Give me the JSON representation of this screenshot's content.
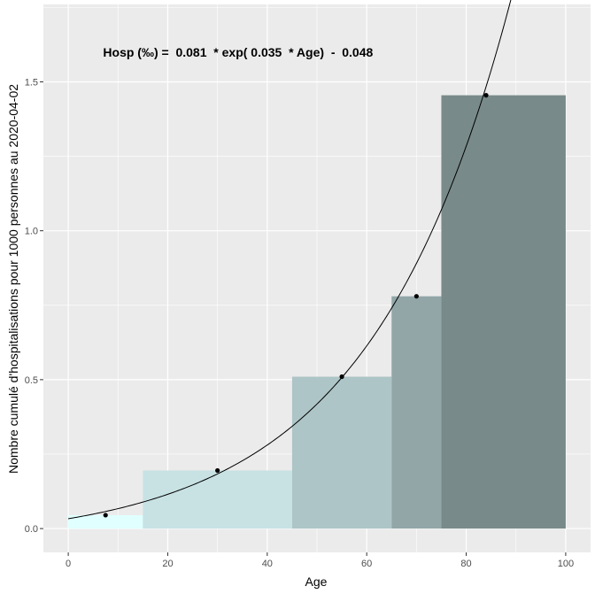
{
  "chart_data": {
    "type": "bar",
    "title": "",
    "xlabel": "Age",
    "ylabel": "Nombre cumulé d'hospitalisations pour 1000 personnes au 2020-04-02",
    "xlim": [
      -5,
      105
    ],
    "ylim": [
      -0.08,
      1.76
    ],
    "x_ticks": [
      0,
      20,
      40,
      60,
      80,
      100
    ],
    "x_tick_labels": [
      "0",
      "20",
      "40",
      "60",
      "80",
      "100"
    ],
    "y_ticks": [
      0.0,
      0.5,
      1.0,
      1.5
    ],
    "y_tick_labels": [
      "0.0",
      "0.5",
      "1.0",
      "1.5"
    ],
    "grid": true,
    "bars": [
      {
        "x_start": 0,
        "x_end": 15,
        "value": 0.045,
        "color": "#e0ffff"
      },
      {
        "x_start": 15,
        "x_end": 45,
        "value": 0.195,
        "color": "#c8e2e4"
      },
      {
        "x_start": 45,
        "x_end": 65,
        "value": 0.51,
        "color": "#adc5c6"
      },
      {
        "x_start": 65,
        "x_end": 75,
        "value": 0.78,
        "color": "#92a6a8"
      },
      {
        "x_start": 75,
        "x_end": 100,
        "value": 1.455,
        "color": "#798a8a"
      }
    ],
    "points": [
      {
        "x": 7.5,
        "y": 0.045
      },
      {
        "x": 30,
        "y": 0.195
      },
      {
        "x": 55,
        "y": 0.51
      },
      {
        "x": 70,
        "y": 0.78
      },
      {
        "x": 84,
        "y": 1.455
      }
    ],
    "fit_curve": {
      "a": 0.081,
      "b": 0.035,
      "c": -0.048,
      "x_range": [
        0,
        90
      ]
    },
    "annotation": {
      "text": "Hosp (‰) =  0.081  * exp( 0.035  * Age)  -  0.048",
      "x": 7,
      "y": 1.6
    }
  }
}
